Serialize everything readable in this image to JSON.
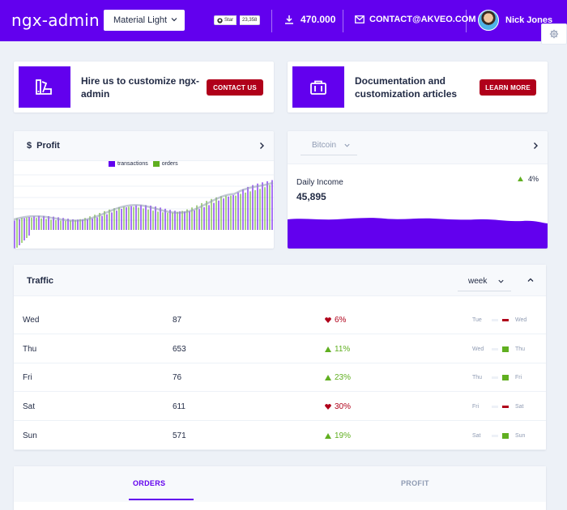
{
  "header": {
    "logo": "ngx-admin",
    "theme": "Material Light",
    "github": {
      "star_label": "Star",
      "star_count": "23,358"
    },
    "downloads": "470.000",
    "contact": "CONTACT@AKVEO.COM",
    "user_name": "Nick Jones"
  },
  "promos": [
    {
      "text": "Hire us to customize ngx-admin",
      "button": "CONTACT US",
      "icon": "palette-icon"
    },
    {
      "text": "Documentation and customization articles",
      "button": "LEARN MORE",
      "icon": "briefcase-icon"
    }
  ],
  "profit_card": {
    "title": "Profit",
    "legend": [
      "transactions",
      "orders"
    ],
    "colors": {
      "transactions": "#6200ee",
      "orders": "#60af20"
    }
  },
  "bitcoin_card": {
    "select": "Bitcoin",
    "label": "Daily Income",
    "value": "45,895",
    "delta": "4%"
  },
  "traffic": {
    "title": "Traffic",
    "period": "week",
    "rows": [
      {
        "day": "Wed",
        "value": "87",
        "delta": "6%",
        "trend": "down",
        "prev": "Tue",
        "cur": "Wed"
      },
      {
        "day": "Thu",
        "value": "653",
        "delta": "11%",
        "trend": "up",
        "prev": "Wed",
        "cur": "Thu"
      },
      {
        "day": "Fri",
        "value": "76",
        "delta": "23%",
        "trend": "up",
        "prev": "Thu",
        "cur": "Fri"
      },
      {
        "day": "Sat",
        "value": "611",
        "delta": "30%",
        "trend": "down",
        "prev": "Fri",
        "cur": "Sat"
      },
      {
        "day": "Sun",
        "value": "571",
        "delta": "19%",
        "trend": "up",
        "prev": "Sat",
        "cur": "Sun"
      }
    ]
  },
  "tabs": [
    "ORDERS",
    "PROFIT"
  ],
  "colors": {
    "primary": "#6200ee",
    "danger": "#b0001a",
    "success": "#60af20"
  }
}
